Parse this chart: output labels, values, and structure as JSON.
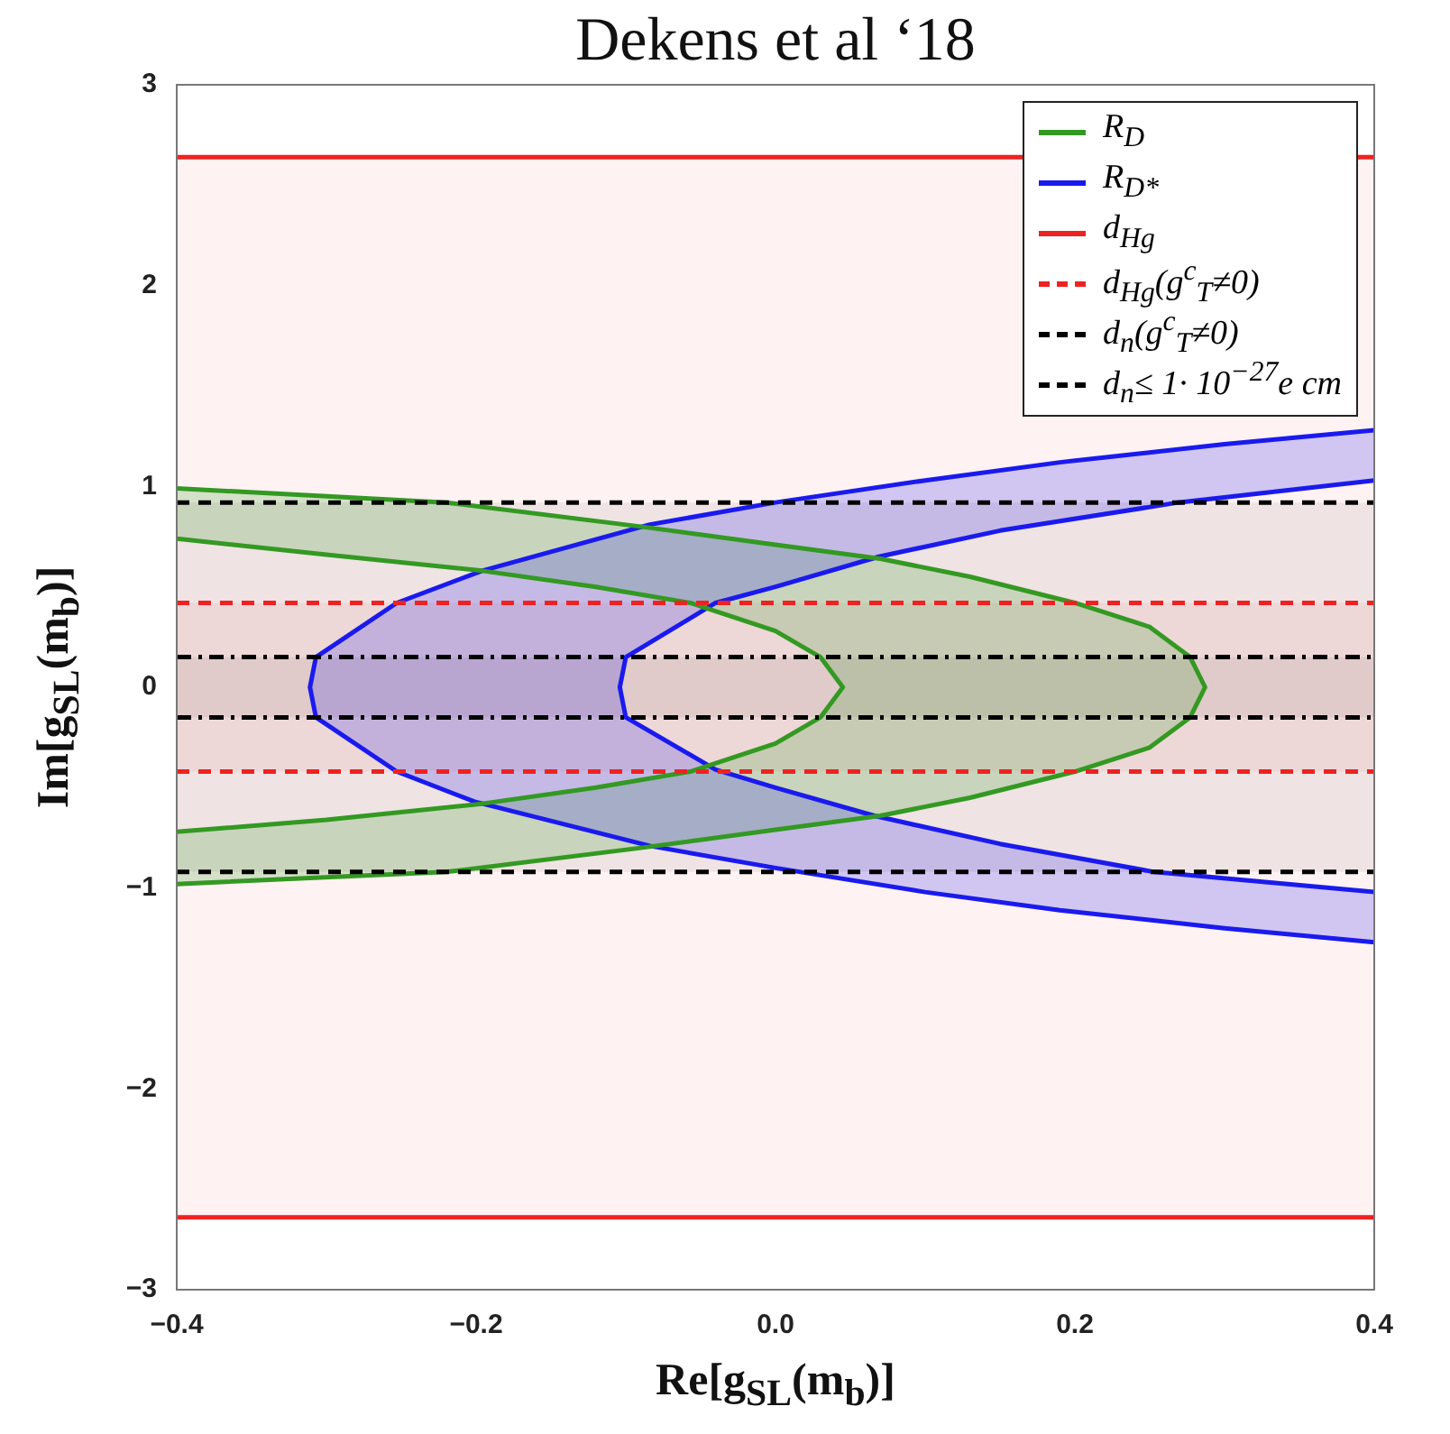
{
  "chart_data": {
    "type": "area",
    "title": "Dekens et al ‘18",
    "xlabel": "Re[g$_{S}$$_{L}$(m$_{b}$)]",
    "ylabel": "Im[g$_{S}$$_{L}$(m$_{b}$)]",
    "xlim": [
      -0.4,
      0.4
    ],
    "xticks": [
      {
        "value": -0.4,
        "label": "−0.4"
      },
      {
        "value": -0.2,
        "label": "−0.2"
      },
      {
        "value": 0,
        "label": "0.0"
      },
      0.2,
      0.4
    ],
    "ylim": [
      -3,
      3
    ],
    "yticks": [
      {
        "value": -3,
        "label": "−3"
      },
      {
        "value": -2,
        "label": "−2"
      },
      {
        "value": -1,
        "label": "−1"
      },
      0,
      1,
      2,
      3
    ],
    "legend": "top right",
    "marker": "none",
    "series": [
      {
        "name": "R$_{D}$",
        "color": "#339922",
        "x": [
          -0.4,
          -0.22,
          -0.09,
          0,
          0.07,
          0.13,
          0.2,
          0.25,
          0.277,
          0.287,
          0.277,
          0.25,
          0.2,
          0.13,
          0.07,
          0,
          -0.09,
          -0.22,
          -0.4,
          -0.4,
          -0.3,
          -0.196,
          -0.12,
          -0.057,
          0,
          0.03,
          0.045,
          0.03,
          0,
          -0.057,
          -0.12,
          -0.196,
          -0.3,
          -0.4
        ],
        "values": [
          0.99,
          0.92,
          0.8,
          0.71,
          0.64,
          0.55,
          0.42,
          0.3,
          0.15,
          0,
          -0.15,
          -0.3,
          -0.42,
          -0.55,
          -0.64,
          -0.71,
          -0.8,
          -0.92,
          -0.98,
          -0.72,
          -0.66,
          -0.58,
          -0.5,
          -0.42,
          -0.28,
          -0.15,
          0,
          0.15,
          0.28,
          0.42,
          0.5,
          0.58,
          0.66,
          0.74
        ]
      },
      {
        "name": "R$_{D*}$",
        "color": "#1a1aee",
        "x": [
          0.4,
          0.3,
          0.19,
          0.1,
          0,
          -0.084,
          -0.196,
          -0.253,
          -0.307,
          -0.311,
          -0.307,
          -0.253,
          -0.201,
          -0.084,
          0,
          0.1,
          0.19,
          0.3,
          0.4,
          0.4,
          0.253,
          0.15,
          0.066,
          0,
          -0.04,
          -0.1,
          -0.104,
          -0.1,
          -0.04,
          0,
          0.069,
          0.15,
          0.269,
          0.4
        ],
        "values": [
          1.28,
          1.21,
          1.12,
          1.03,
          0.92,
          0.81,
          0.58,
          0.42,
          0.15,
          0,
          -0.15,
          -0.42,
          -0.57,
          -0.79,
          -0.9,
          -1.02,
          -1.11,
          -1.2,
          -1.27,
          -1.02,
          -0.92,
          -0.78,
          -0.64,
          -0.5,
          -0.41,
          -0.15,
          0,
          0.15,
          0.42,
          0.5,
          0.65,
          0.78,
          0.92,
          1.03
        ]
      }
    ],
    "bands": [
      {
        "axis": "y",
        "from": -2.64,
        "to": 2.64,
        "color": "#ee2222"
      },
      {
        "axis": "y",
        "from": -0.42,
        "to": 0.42,
        "color": "#ee2222"
      },
      {
        "axis": "y",
        "from": -0.92,
        "to": 0.92,
        "color": "#000000"
      },
      {
        "axis": "y",
        "from": -0.15,
        "to": 0.15,
        "color": "#000000"
      }
    ],
    "ref_lines": [
      {
        "axis": "y",
        "value": 2.64,
        "label": "d$_{Hg}$",
        "color": "#ee2222",
        "line_style": "solid"
      },
      {
        "axis": "y",
        "value": -2.64,
        "color": "#ee2222",
        "line_style": "solid"
      },
      {
        "axis": "y",
        "value": 0.42,
        "label": "d$_{Hg}$(g$^{c}$$_{T}$≠0)",
        "color": "#ee2222",
        "line_style": "dashed"
      },
      {
        "axis": "y",
        "value": -0.42,
        "color": "#ee2222",
        "line_style": "dashed"
      },
      {
        "axis": "y",
        "value": 0.92,
        "label": "d$_{n}$(g$^{c}$$_{T}$≠0)",
        "color": "#000000",
        "line_style": "dashed"
      },
      {
        "axis": "y",
        "value": -0.92,
        "color": "#000000",
        "line_style": "dashed"
      },
      {
        "axis": "y",
        "value": 0.15,
        "label": "d$_{n}$≤ 1· 10$^{−27}$e cm",
        "color": "#000000",
        "line_style": "dashdot"
      },
      {
        "axis": "y",
        "value": -0.15,
        "color": "#000000",
        "line_style": "dashdot"
      }
    ]
  }
}
